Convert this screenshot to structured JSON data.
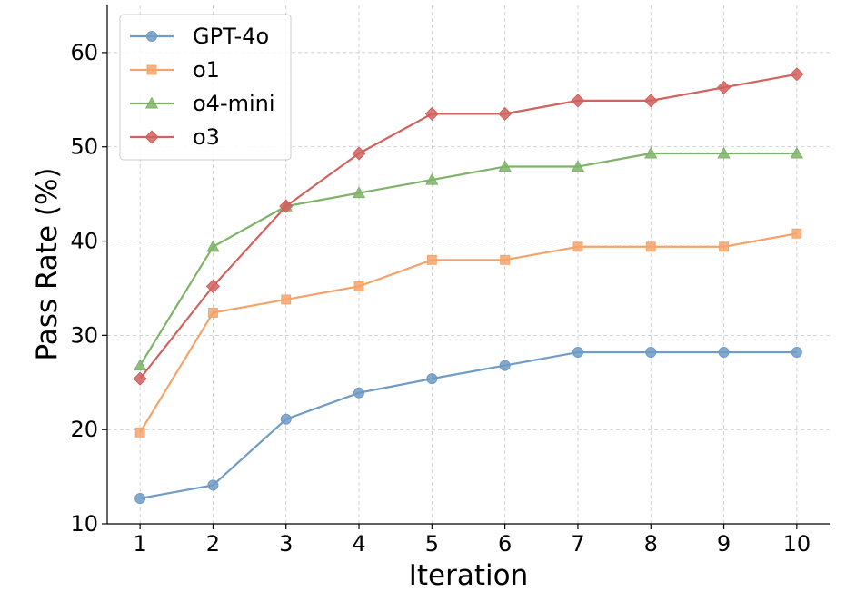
{
  "chart_data": {
    "type": "line",
    "xlabel": "Iteration",
    "ylabel": "Pass Rate (%)",
    "x": [
      1,
      2,
      3,
      4,
      5,
      6,
      7,
      8,
      9,
      10
    ],
    "xlim": [
      0.55,
      10.45
    ],
    "ylim": [
      10,
      65
    ],
    "yticks": [
      10,
      20,
      30,
      40,
      50,
      60
    ],
    "grid": true,
    "legend_position": "top-left",
    "series": [
      {
        "name": "GPT-4o",
        "color": "#6f9bc5",
        "marker": "circle",
        "values": [
          12.7,
          14.1,
          21.1,
          23.9,
          25.4,
          26.8,
          28.2,
          28.2,
          28.2,
          28.2
        ]
      },
      {
        "name": "o1",
        "color": "#f4a46a",
        "marker": "square",
        "values": [
          19.7,
          32.4,
          33.8,
          35.2,
          38.0,
          38.0,
          39.4,
          39.4,
          39.4,
          40.8
        ]
      },
      {
        "name": "o4-mini",
        "color": "#7fb36a",
        "marker": "triangle",
        "values": [
          26.8,
          39.4,
          43.7,
          45.1,
          46.5,
          47.9,
          47.9,
          49.3,
          49.3,
          49.3
        ]
      },
      {
        "name": "o3",
        "color": "#d1625e",
        "marker": "diamond",
        "values": [
          25.4,
          35.2,
          43.7,
          49.3,
          53.5,
          53.5,
          54.9,
          54.9,
          56.3,
          57.7
        ]
      }
    ]
  }
}
